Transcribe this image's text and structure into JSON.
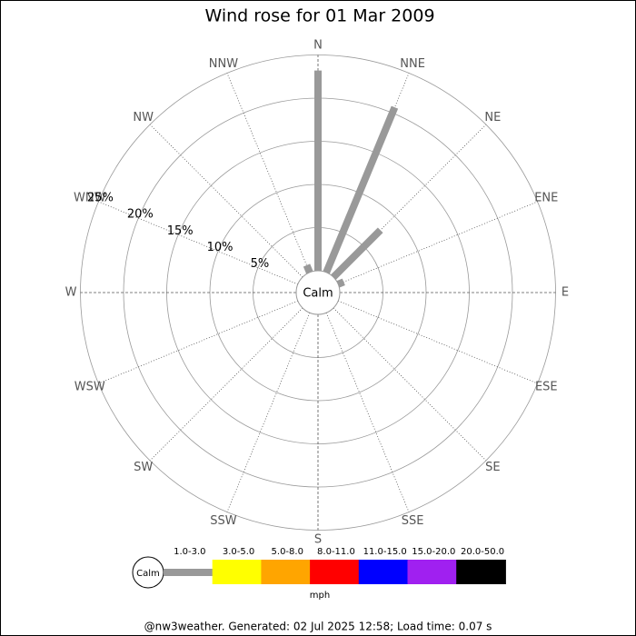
{
  "chart_data": {
    "type": "windrose",
    "title": "Wind rose for 01 Mar 2009",
    "directions": [
      "N",
      "NNE",
      "NE",
      "ENE",
      "E",
      "ESE",
      "SE",
      "SSE",
      "S",
      "SSW",
      "SW",
      "WSW",
      "W",
      "WNW",
      "NW",
      "NNW"
    ],
    "series": [
      {
        "name": "1.0-3.0",
        "color": "#999999",
        "values": [
          23.2,
          20.7,
          7.7,
          0.7,
          0,
          0,
          0,
          0,
          0,
          0,
          0,
          0,
          0,
          0,
          0,
          0.9
        ]
      },
      {
        "name": "3.0-5.0",
        "color": "#ffff00",
        "values": [
          0,
          0,
          0,
          0,
          0,
          0,
          0,
          0,
          0,
          0,
          0,
          0,
          0,
          0,
          0,
          0
        ]
      },
      {
        "name": "5.0-8.0",
        "color": "#ffa500",
        "values": [
          0,
          0,
          0,
          0,
          0,
          0,
          0,
          0,
          0,
          0,
          0,
          0,
          0,
          0,
          0,
          0
        ]
      },
      {
        "name": "8.0-11.0",
        "color": "#ff0000",
        "values": [
          0,
          0,
          0,
          0,
          0,
          0,
          0,
          0,
          0,
          0,
          0,
          0,
          0,
          0,
          0,
          0
        ]
      },
      {
        "name": "11.0-15.0",
        "color": "#0000ff",
        "values": [
          0,
          0,
          0,
          0,
          0,
          0,
          0,
          0,
          0,
          0,
          0,
          0,
          0,
          0,
          0,
          0
        ]
      },
      {
        "name": "15.0-20.0",
        "color": "#a020f0",
        "values": [
          0,
          0,
          0,
          0,
          0,
          0,
          0,
          0,
          0,
          0,
          0,
          0,
          0,
          0,
          0,
          0
        ]
      },
      {
        "name": "20.0-50.0",
        "color": "#000000",
        "values": [
          0,
          0,
          0,
          0,
          0,
          0,
          0,
          0,
          0,
          0,
          0,
          0,
          0,
          0,
          0,
          0
        ]
      }
    ],
    "rlim": [
      0,
      25
    ],
    "rticks": [
      {
        "value": 5,
        "label": "5%"
      },
      {
        "value": 10,
        "label": "10%"
      },
      {
        "value": 15,
        "label": "15%"
      },
      {
        "value": 20,
        "label": "20%"
      },
      {
        "value": 25,
        "label": "25%"
      }
    ],
    "calm_label": "Calm",
    "legend_unit": "mph",
    "footer": "@nw3weather.  Generated: 02 Jul 2025 12:58; Load time: 0.07 s"
  }
}
